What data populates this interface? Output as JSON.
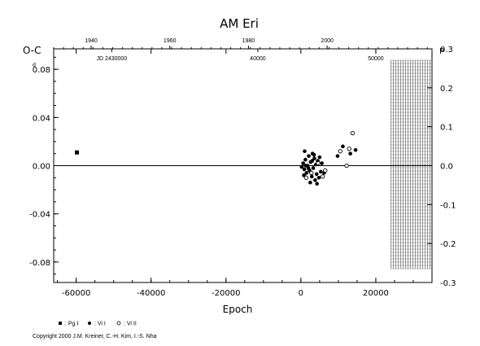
{
  "chart_data": {
    "type": "scatter",
    "title": "AM  Eri",
    "ylabel": "O-C",
    "ylabel_unit": "d",
    "xlabel": "Epoch",
    "right_unit": "P",
    "copyright": "Copyright 2000 J.M. Kreiner, C.-H. Kim, I.-S. Nha",
    "xlim": [
      -66000,
      35000
    ],
    "ylim": [
      -0.097,
      0.097
    ],
    "right_ylim": [
      -0.3,
      0.3
    ],
    "x_ticks": [
      -60000,
      -40000,
      -20000,
      0,
      20000
    ],
    "x_tick_labels": [
      "-60000",
      "-40000",
      "-20000",
      "0",
      "20000"
    ],
    "y_ticks": [
      -0.08,
      -0.04,
      0.0,
      0.04,
      0.08
    ],
    "y_tick_labels": [
      "-0.08",
      "-0.04",
      "0.00",
      "0.04",
      "0.08"
    ],
    "right_ticks": [
      -0.3,
      -0.2,
      -0.1,
      0.0,
      0.1,
      0.2,
      0.3
    ],
    "right_tick_labels": [
      "-0.3",
      "-0.2",
      "-0.1",
      "0.0",
      "0.1",
      "0.2",
      "0.3"
    ],
    "top_years": [
      {
        "epoch": -56000,
        "label": "1940"
      },
      {
        "epoch": -35000,
        "label": "1960"
      },
      {
        "epoch": -14000,
        "label": "1980"
      },
      {
        "epoch": 7000,
        "label": "2000"
      }
    ],
    "jd_labels": [
      {
        "epoch": -50500,
        "label": "JD 2430000"
      },
      {
        "epoch": -11500,
        "label": "40000"
      },
      {
        "epoch": 20000,
        "label": "50000"
      }
    ],
    "hatch_region": [
      24000,
      35000
    ],
    "legend": [
      {
        "marker": "square",
        "label": ": Pg I"
      },
      {
        "marker": "filled",
        "label": ": Vi I"
      },
      {
        "marker": "open",
        "label": ": Vi II"
      }
    ],
    "series": [
      {
        "marker": "square",
        "points": [
          [
            -59800,
            0.011
          ]
        ]
      },
      {
        "marker": "filled",
        "points": [
          [
            200,
            -0.001
          ],
          [
            600,
            0.002
          ],
          [
            900,
            -0.003
          ],
          [
            1200,
            0.005
          ],
          [
            1500,
            -0.006
          ],
          [
            1800,
            0.0
          ],
          [
            2100,
            0.008
          ],
          [
            2300,
            -0.004
          ],
          [
            2600,
            0.003
          ],
          [
            2900,
            -0.009
          ],
          [
            3100,
            0.01
          ],
          [
            3300,
            -0.002
          ],
          [
            3600,
            0.006
          ],
          [
            3800,
            -0.012
          ],
          [
            4000,
            0.001
          ],
          [
            4200,
            -0.007
          ],
          [
            4500,
            0.004
          ],
          [
            4800,
            -0.01
          ],
          [
            5000,
            0.007
          ],
          [
            5300,
            -0.005
          ],
          [
            5600,
            0.002
          ],
          [
            800,
            -0.008
          ],
          [
            1000,
            0.012
          ],
          [
            2500,
            -0.014
          ],
          [
            3500,
            0.009
          ],
          [
            4300,
            -0.015
          ],
          [
            6200,
            -0.006
          ],
          [
            1300,
            0.0
          ],
          [
            2000,
            -0.002
          ],
          [
            3000,
            0.004
          ],
          [
            9800,
            0.008
          ],
          [
            11200,
            0.016
          ],
          [
            13200,
            0.01
          ],
          [
            14600,
            0.013
          ]
        ]
      },
      {
        "marker": "open",
        "points": [
          [
            1400,
            -0.01
          ],
          [
            2800,
            -0.006
          ],
          [
            4600,
            0.002
          ],
          [
            5800,
            -0.009
          ],
          [
            6500,
            -0.004
          ],
          [
            10500,
            0.012
          ],
          [
            12200,
            0.0
          ],
          [
            12900,
            0.014
          ],
          [
            13800,
            0.027
          ]
        ]
      }
    ]
  }
}
